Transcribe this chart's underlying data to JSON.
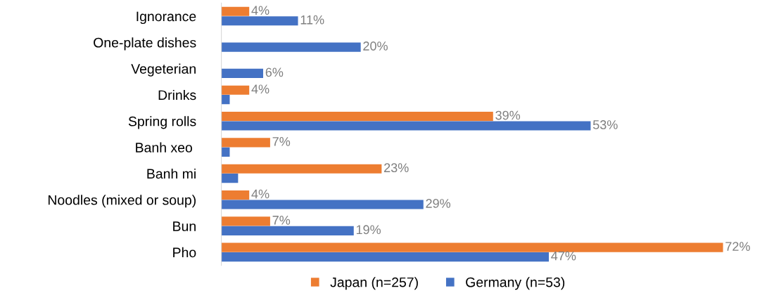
{
  "chart_data": {
    "type": "bar",
    "orientation": "horizontal",
    "categories": [
      "Ignorance",
      "One-plate dishes",
      "Vegeterian",
      "Drinks",
      "Spring rolls",
      "Banh xeo ",
      "Banh mi",
      "Noodles (mixed or soup)",
      "Bun",
      "Pho"
    ],
    "series": [
      {
        "name": "Japan (n=257)",
        "color": "#ed7d31",
        "values": [
          4,
          null,
          null,
          4,
          39,
          7,
          23,
          4,
          7,
          72
        ],
        "value_labels": [
          "4%",
          null,
          null,
          "4%",
          "39%",
          "7%",
          "23%",
          "4%",
          "7%",
          "72%"
        ]
      },
      {
        "name": "Germany (n=53)",
        "color": "#4472c4",
        "values": [
          11,
          20,
          6,
          1.2,
          53,
          1.2,
          2.4,
          29,
          19,
          47
        ],
        "value_labels": [
          "11%",
          "20%",
          "6%",
          null,
          "53%",
          null,
          null,
          "29%",
          "19%",
          "47%"
        ]
      }
    ],
    "tick_labels": "y",
    "grid": false,
    "legend": "bottom"
  }
}
